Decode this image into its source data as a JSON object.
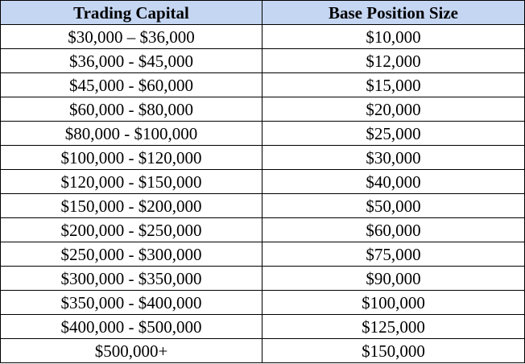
{
  "table": {
    "headers": [
      "Trading Capital",
      "Base Position Size"
    ],
    "rows": [
      [
        "$30,000 – $36,000",
        "$10,000"
      ],
      [
        "$36,000 - $45,000",
        "$12,000"
      ],
      [
        "$45,000 - $60,000",
        "$15,000"
      ],
      [
        "$60,000 - $80,000",
        "$20,000"
      ],
      [
        "$80,000 - $100,000",
        "$25,000"
      ],
      [
        "$100,000 - $120,000",
        "$30,000"
      ],
      [
        "$120,000 - $150,000",
        "$40,000"
      ],
      [
        "$150,000 - $200,000",
        "$50,000"
      ],
      [
        "$200,000 - $250,000",
        "$60,000"
      ],
      [
        "$250,000 - $300,000",
        "$75,000"
      ],
      [
        "$300,000 - $350,000",
        "$90,000"
      ],
      [
        "$350,000 - $400,000",
        "$100,000"
      ],
      [
        "$400,000 - $500,000",
        "$125,000"
      ],
      [
        "$500,000+",
        "$150,000"
      ]
    ]
  },
  "colors": {
    "header_background": "#c5d6f2",
    "border": "#000000",
    "text": "#000000"
  }
}
